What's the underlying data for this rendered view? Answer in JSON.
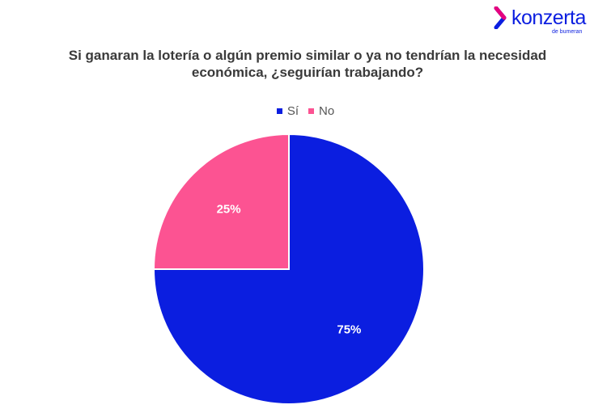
{
  "brand": {
    "name": "konzerta",
    "tagline": "de bumeran",
    "color": "#0b1ee0",
    "accent": "#e6007e"
  },
  "chart_data": {
    "type": "pie",
    "title_lines": [
      "Si ganaran la lotería o algún premio similar o ya no tendrían la necesidad",
      "económica, ¿seguirían trabajando?"
    ],
    "legend_position": "top",
    "slices": [
      {
        "label": "Sí",
        "value": 75,
        "display": "75%",
        "color": "#0b1ee0"
      },
      {
        "label": "No",
        "value": 25,
        "display": "25%",
        "color": "#fc5392"
      }
    ],
    "start_angle_deg": 0,
    "direction": "clockwise"
  }
}
